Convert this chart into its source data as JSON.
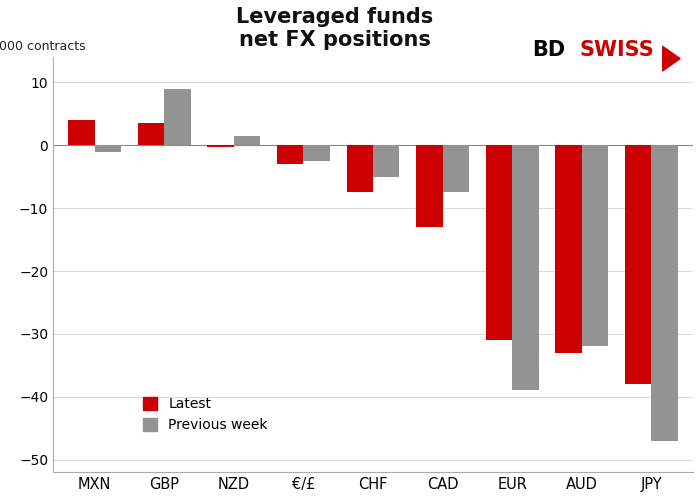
{
  "categories": [
    "MXN",
    "GBP",
    "NZD",
    "€/£",
    "CHF",
    "CAD",
    "EUR",
    "AUD",
    "JPY"
  ],
  "latest": [
    4.0,
    3.5,
    -0.3,
    -3.0,
    -7.5,
    -13.0,
    -31.0,
    -33.0,
    -38.0
  ],
  "previous_week": [
    -1.0,
    9.0,
    1.5,
    -2.5,
    -5.0,
    -7.5,
    -39.0,
    -32.0,
    -47.0
  ],
  "latest_color": "#cc0000",
  "prev_color": "#939393",
  "title_line1": "Leveraged funds",
  "title_line2": "net FX positions",
  "ylabel": "000 contracts",
  "ylim": [
    -52,
    14
  ],
  "yticks": [
    -50,
    -40,
    -30,
    -20,
    -10,
    0,
    10
  ],
  "legend_latest": "Latest",
  "legend_prev": "Previous week",
  "bar_width": 0.38,
  "background_color": "#ffffff"
}
